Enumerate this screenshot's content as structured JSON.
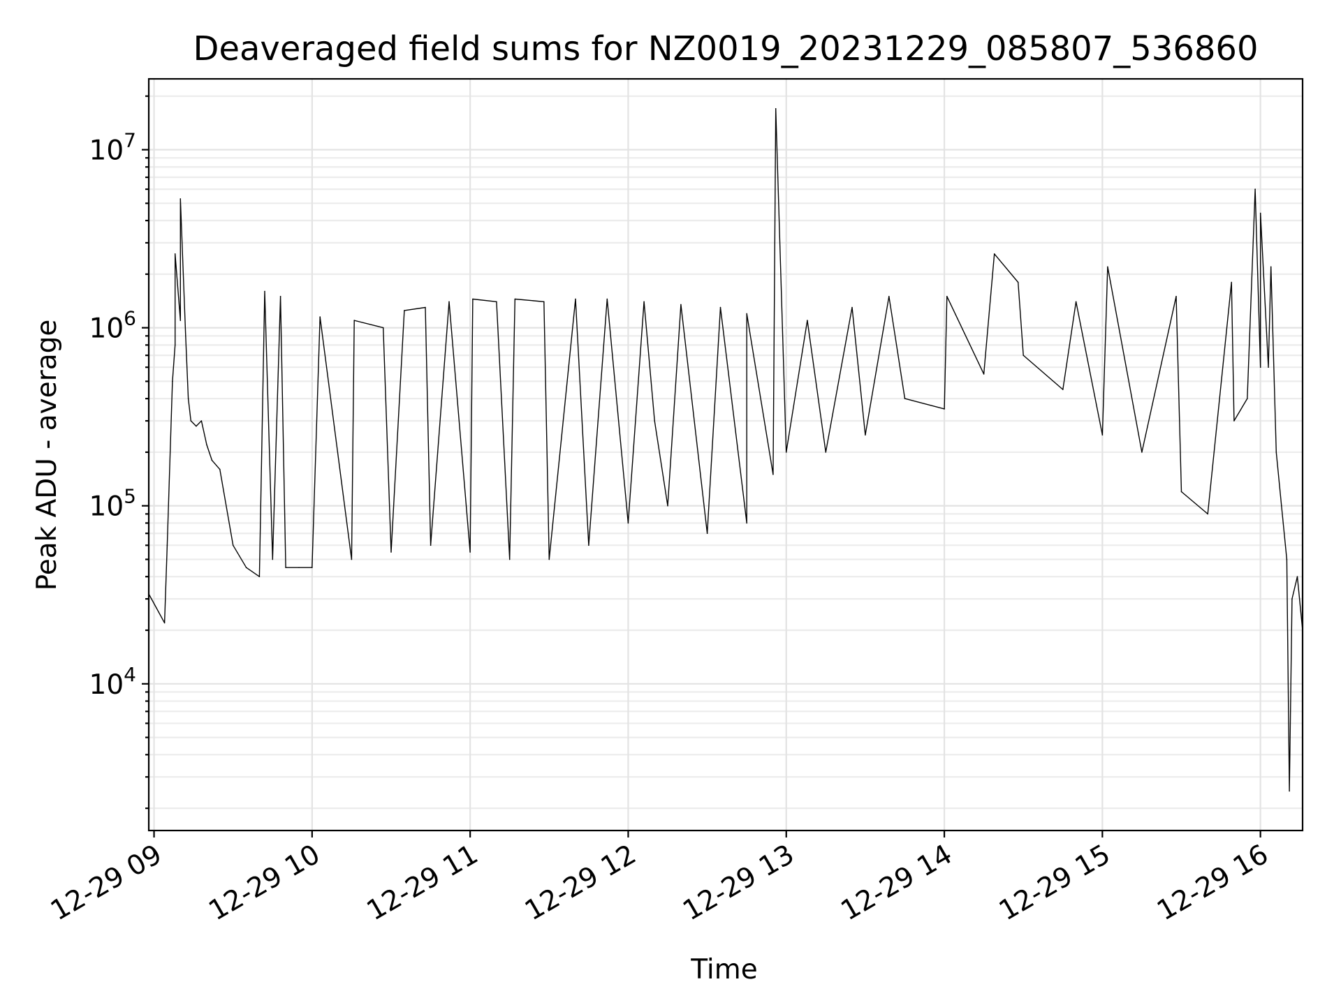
{
  "chart_data": {
    "type": "line",
    "title": "Deaveraged field sums for NZ0019_20231229_085807_536860",
    "xlabel": "Time",
    "ylabel": "Peak ADU - average",
    "yscale": "log",
    "ylim": [
      1500,
      25000000
    ],
    "xlim": [
      "2023-12-29 08:58",
      "2023-12-29 16:16"
    ],
    "grid": "on (major and minor)",
    "line_color": "#000000",
    "x_ticks": [
      {
        "value": "2023-12-29 09:00",
        "label": "12-29 09"
      },
      {
        "value": "2023-12-29 10:00",
        "label": "12-29 10"
      },
      {
        "value": "2023-12-29 11:00",
        "label": "12-29 11"
      },
      {
        "value": "2023-12-29 12:00",
        "label": "12-29 12"
      },
      {
        "value": "2023-12-29 13:00",
        "label": "12-29 13"
      },
      {
        "value": "2023-12-29 14:00",
        "label": "12-29 14"
      },
      {
        "value": "2023-12-29 15:00",
        "label": "12-29 15"
      },
      {
        "value": "2023-12-29 16:00",
        "label": "12-29 16"
      }
    ],
    "y_ticks": [
      {
        "value": 10000,
        "base": "10",
        "exp": "4"
      },
      {
        "value": 100000,
        "base": "10",
        "exp": "5"
      },
      {
        "value": 1000000,
        "base": "10",
        "exp": "6"
      },
      {
        "value": 10000000,
        "base": "10",
        "exp": "7"
      }
    ],
    "x": [
      "2023-12-29 08:58",
      "2023-12-29 09:04",
      "2023-12-29 09:05",
      "2023-12-29 09:07",
      "2023-12-29 09:08",
      "2023-12-29 09:10",
      "2023-12-29 09:12",
      "2023-12-29 09:13",
      "2023-12-29 09:14",
      "2023-12-29 09:16",
      "2023-12-29 09:18",
      "2023-12-29 09:20",
      "2023-12-29 09:22",
      "2023-12-29 09:25",
      "2023-12-29 09:30",
      "2023-12-29 09:35",
      "2023-12-29 09:40",
      "2023-12-29 09:45",
      "2023-12-29 09:50",
      "2023-12-29 09:55",
      "2023-12-29 10:00",
      "2023-12-29 10:15",
      "2023-12-29 10:30",
      "2023-12-29 10:45",
      "2023-12-29 11:00",
      "2023-12-29 11:15",
      "2023-12-29 11:30",
      "2023-12-29 11:45",
      "2023-12-29 12:00",
      "2023-12-29 12:10",
      "2023-12-29 12:15",
      "2023-12-29 12:30",
      "2023-12-29 12:45",
      "2023-12-29 12:55",
      "2023-12-29 13:00",
      "2023-12-29 13:15",
      "2023-12-29 13:30",
      "2023-12-29 13:45",
      "2023-12-29 14:00",
      "2023-12-29 14:15",
      "2023-12-29 14:30",
      "2023-12-29 14:45",
      "2023-12-29 15:00",
      "2023-12-29 15:15",
      "2023-12-29 15:30",
      "2023-12-29 15:40",
      "2023-12-29 15:50",
      "2023-12-29 15:55",
      "2023-12-29 16:00",
      "2023-12-29 16:03",
      "2023-12-29 16:06",
      "2023-12-29 16:08",
      "2023-12-29 16:10",
      "2023-12-29 16:11",
      "2023-12-29 16:12",
      "2023-12-29 16:14",
      "2023-12-29 16:16"
    ],
    "y": [
      32000,
      22000,
      60000,
      500000,
      800000,
      1100000,
      900000,
      400000,
      300000,
      280000,
      300000,
      220000,
      180000,
      160000,
      60000,
      45000,
      40000,
      50000,
      45000,
      45000,
      45000,
      50000,
      55000,
      60000,
      55000,
      50000,
      50000,
      60000,
      80000,
      300000,
      100000,
      70000,
      80000,
      150000,
      200000,
      200000,
      250000,
      400000,
      350000,
      550000,
      700000,
      450000,
      250000,
      200000,
      120000,
      90000,
      300000,
      400000,
      600000,
      600000,
      200000,
      100000,
      50000,
      2500,
      30000,
      40000,
      20000
    ],
    "spikes": [
      {
        "x": "2023-12-29 09:10",
        "y": 5300000
      },
      {
        "x": "2023-12-29 09:08",
        "y": 2600000
      },
      {
        "x": "2023-12-29 09:42",
        "y": 1600000
      },
      {
        "x": "2023-12-29 09:48",
        "y": 1500000
      },
      {
        "x": "2023-12-29 10:03",
        "y": 1150000
      },
      {
        "x": "2023-12-29 10:16",
        "y": 1100000
      },
      {
        "x": "2023-12-29 10:27",
        "y": 1000000
      },
      {
        "x": "2023-12-29 10:35",
        "y": 1250000
      },
      {
        "x": "2023-12-29 10:43",
        "y": 1300000
      },
      {
        "x": "2023-12-29 10:52",
        "y": 1400000
      },
      {
        "x": "2023-12-29 11:01",
        "y": 1450000
      },
      {
        "x": "2023-12-29 11:10",
        "y": 1400000
      },
      {
        "x": "2023-12-29 11:17",
        "y": 1450000
      },
      {
        "x": "2023-12-29 11:28",
        "y": 1400000
      },
      {
        "x": "2023-12-29 11:40",
        "y": 1450000
      },
      {
        "x": "2023-12-29 11:52",
        "y": 1450000
      },
      {
        "x": "2023-12-29 12:06",
        "y": 1400000
      },
      {
        "x": "2023-12-29 12:20",
        "y": 1350000
      },
      {
        "x": "2023-12-29 12:35",
        "y": 1300000
      },
      {
        "x": "2023-12-29 12:45",
        "y": 1200000
      },
      {
        "x": "2023-12-29 12:56",
        "y": 17000000
      },
      {
        "x": "2023-12-29 13:08",
        "y": 1100000
      },
      {
        "x": "2023-12-29 13:25",
        "y": 1300000
      },
      {
        "x": "2023-12-29 13:39",
        "y": 1500000
      },
      {
        "x": "2023-12-29 14:01",
        "y": 1500000
      },
      {
        "x": "2023-12-29 14:19",
        "y": 2600000
      },
      {
        "x": "2023-12-29 14:28",
        "y": 1800000
      },
      {
        "x": "2023-12-29 14:50",
        "y": 1400000
      },
      {
        "x": "2023-12-29 15:02",
        "y": 2200000
      },
      {
        "x": "2023-12-29 15:28",
        "y": 1500000
      },
      {
        "x": "2023-12-29 15:49",
        "y": 1800000
      },
      {
        "x": "2023-12-29 15:58",
        "y": 6000000
      },
      {
        "x": "2023-12-29 16:00",
        "y": 4400000
      },
      {
        "x": "2023-12-29 16:04",
        "y": 2200000
      }
    ]
  }
}
